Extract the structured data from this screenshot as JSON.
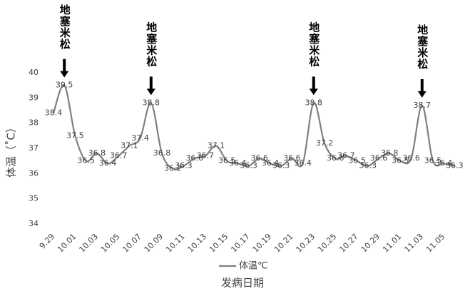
{
  "chart_data": {
    "type": "line",
    "y_label": "体温（˚C）",
    "x_label": "发病日期",
    "categories": [
      "9.29",
      null,
      "10.01",
      null,
      "10.03",
      null,
      "10.05",
      null,
      "10.07",
      null,
      "10.09",
      null,
      "10.11",
      null,
      "10.13",
      null,
      "10.15",
      null,
      "10.17",
      null,
      "10.19",
      null,
      "10.21",
      null,
      "10.23",
      null,
      "10.25",
      null,
      "10.27",
      null,
      "10.29",
      null,
      "11.01",
      null,
      "11.03",
      null,
      "11.05",
      null
    ],
    "series": [
      {
        "name": "体温℃",
        "color": "#7f7f7f",
        "values": [
          38.4,
          39.5,
          37.5,
          36.5,
          36.8,
          36.4,
          36.7,
          37.1,
          37.4,
          38.8,
          36.8,
          36.2,
          36.3,
          36.6,
          36.7,
          37.1,
          36.5,
          36.4,
          36.3,
          36.6,
          36.4,
          36.3,
          36.6,
          36.4,
          38.8,
          37.2,
          36.6,
          36.7,
          36.5,
          36.3,
          36.6,
          36.8,
          36.5,
          36.6,
          38.7,
          36.5,
          36.4,
          36.3
        ]
      }
    ],
    "annotations": [
      "地塞米松",
      "地塞米松",
      "地塞米松",
      "地塞米松"
    ],
    "ylim": [
      34,
      40
    ],
    "yticks": [
      34,
      35,
      36,
      37,
      38,
      39,
      40
    ],
    "grid": false,
    "legend": "bottom"
  }
}
